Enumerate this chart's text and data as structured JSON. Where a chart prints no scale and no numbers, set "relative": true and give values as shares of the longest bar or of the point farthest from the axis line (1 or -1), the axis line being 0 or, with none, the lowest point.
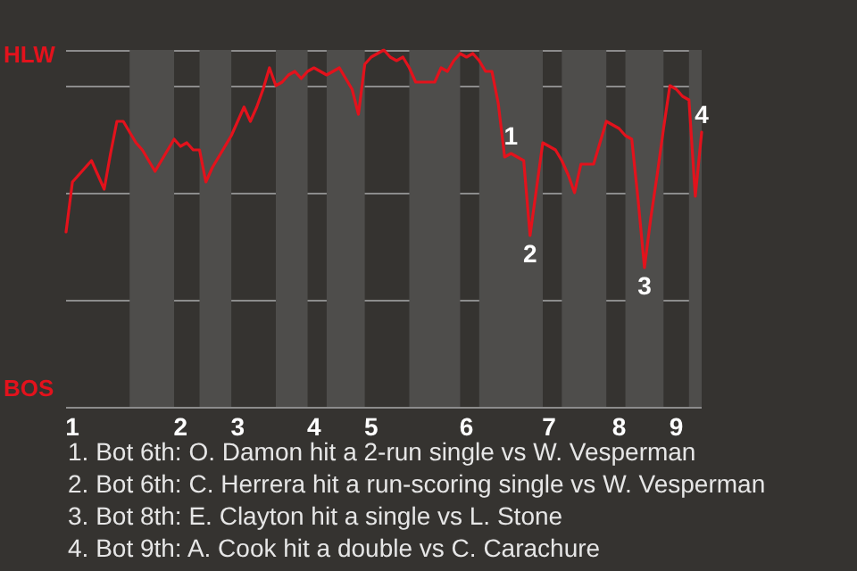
{
  "chart_data": {
    "type": "line",
    "relative": true,
    "categories": [
      null,
      "1",
      null,
      null,
      null,
      null,
      null,
      null,
      null,
      null,
      null,
      null,
      null,
      null,
      null,
      null,
      null,
      null,
      "2",
      null,
      null,
      null,
      null,
      null,
      null,
      null,
      null,
      "3",
      null,
      null,
      null,
      null,
      null,
      null,
      null,
      null,
      null,
      null,
      null,
      "4",
      null,
      null,
      null,
      null,
      null,
      null,
      null,
      null,
      "5",
      null,
      null,
      null,
      null,
      null,
      null,
      null,
      null,
      null,
      null,
      null,
      null,
      null,
      null,
      "6",
      null,
      null,
      null,
      null,
      null,
      null,
      null,
      null,
      null,
      null,
      null,
      null,
      "7",
      null,
      null,
      null,
      null,
      null,
      null,
      null,
      null,
      null,
      null,
      "8",
      null,
      null,
      null,
      null,
      null,
      null,
      null,
      null,
      "9",
      null,
      null,
      null,
      null
    ],
    "series": [
      {
        "color": "#e3121c",
        "values": [
          0.49,
          0.63,
          0.65,
          0.67,
          0.69,
          0.65,
          0.61,
          0.71,
          0.8,
          0.8,
          0.77,
          0.74,
          0.72,
          0.69,
          0.66,
          0.69,
          0.72,
          0.75,
          0.73,
          0.74,
          0.72,
          0.72,
          0.63,
          0.67,
          0.7,
          0.73,
          0.76,
          0.8,
          0.84,
          0.8,
          0.84,
          0.89,
          0.95,
          0.9,
          0.91,
          0.93,
          0.94,
          0.92,
          0.94,
          0.95,
          0.94,
          0.93,
          0.94,
          0.95,
          0.92,
          0.89,
          0.82,
          0.96,
          0.98,
          0.99,
          1,
          0.98,
          0.97,
          0.98,
          0.95,
          0.91,
          0.91,
          0.91,
          0.91,
          0.95,
          0.94,
          0.97,
          0.99,
          0.98,
          0.99,
          0.97,
          0.94,
          0.94,
          0.85,
          0.7,
          0.71,
          0.7,
          0.69,
          0.48,
          0.61,
          0.74,
          0.73,
          0.72,
          0.69,
          0.65,
          0.6,
          0.68,
          0.68,
          0.68,
          0.74,
          0.8,
          0.79,
          0.78,
          0.76,
          0.75,
          0.58,
          0.39,
          0.53,
          0.65,
          0.78,
          0.9,
          0.89,
          0.87,
          0.86,
          0.59,
          0.77
        ]
      }
    ],
    "grid": "y",
    "marker": "none",
    "line_style": "solid",
    "annotations": [
      "HLW",
      "BOS",
      {
        "text": "1",
        "y": 0.71
      },
      {
        "text": "2",
        "y": 0.48
      },
      {
        "text": "3",
        "y": 0.39
      },
      {
        "text": "4",
        "y": 0.77
      },
      "1. Bot 6th: O. Damon hit a 2-run single vs W. Vesperman",
      "2. Bot 6th: C. Herrera hit a run-scoring single vs W. Vesperman",
      "3. Bot 8th: E. Clayton hit a single vs L. Stone",
      "4. Bot 9th: A. Cook hit a double vs C. Carachure"
    ]
  }
}
